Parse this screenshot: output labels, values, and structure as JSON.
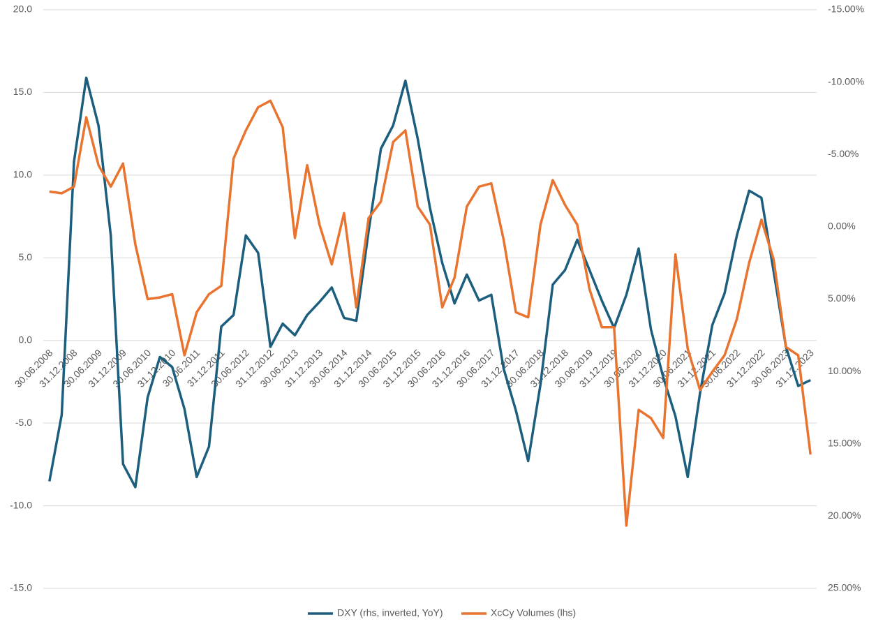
{
  "chart_data": {
    "type": "line",
    "categories": [
      "30.06.2008",
      null,
      "31.12.2008",
      null,
      "30.06.2009",
      null,
      "31.12.2009",
      null,
      "30.06.2010",
      null,
      "31.12.2010",
      null,
      "30.06.2011",
      null,
      "31.12.2011",
      null,
      "30.06.2012",
      null,
      "31.12.2012",
      null,
      "30.06.2013",
      null,
      "31.12.2013",
      null,
      "30.06.2014",
      null,
      "31.12.2014",
      null,
      "30.06.2015",
      null,
      "31.12.2015",
      null,
      "30.06.2016",
      null,
      "31.12.2016",
      null,
      "30.06.2017",
      null,
      "31.12.2017",
      null,
      "30.06.2018",
      null,
      "31.12.2018",
      null,
      "30.06.2019",
      null,
      "31.12.2019",
      null,
      "30.06.2020",
      null,
      "31.12.2020",
      null,
      "30.06.2021",
      null,
      "31.12.2021",
      null,
      "30.06.2022",
      null,
      "31.12.2022",
      null,
      "30.06.2023",
      null,
      "31.12.2023"
    ],
    "series": [
      {
        "name": "DXY (rhs, inverted, YoY)",
        "color": "#1b5e7e",
        "axis": "y2",
        "values": [
          17.6,
          13.0,
          -4.5,
          -10.3,
          -7.0,
          0.6,
          16.4,
          18.0,
          11.8,
          9.0,
          9.7,
          12.6,
          17.3,
          15.2,
          6.9,
          6.1,
          0.6,
          1.8,
          8.3,
          6.7,
          7.5,
          6.1,
          5.2,
          4.2,
          6.3,
          6.5,
          0.3,
          -5.4,
          -7.0,
          -10.1,
          -6.1,
          -1.3,
          2.5,
          5.3,
          3.3,
          5.1,
          4.7,
          9.8,
          12.7,
          16.2,
          10.9,
          4.0,
          3.0,
          0.9,
          3.0,
          5.1,
          7.0,
          4.7,
          1.5,
          7.1,
          10.4,
          13.1,
          17.3,
          11.5,
          6.8,
          4.6,
          0.6,
          -2.5,
          -2.0,
          3.1,
          8.3,
          11.0,
          10.6
        ]
      },
      {
        "name": "XcCy Volumes (lhs)",
        "color": "#e8742f",
        "values": [
          9.0,
          8.9,
          9.3,
          13.5,
          10.6,
          9.3,
          10.7,
          5.8,
          2.5,
          2.6,
          2.8,
          -0.9,
          1.7,
          2.8,
          3.3,
          11.0,
          12.7,
          14.1,
          14.5,
          12.9,
          6.2,
          10.6,
          7.0,
          4.6,
          7.7,
          2.0,
          7.4,
          8.4,
          12.0,
          12.7,
          8.1,
          7.0,
          2.0,
          3.8,
          8.1,
          9.3,
          9.5,
          6.1,
          1.7,
          1.4,
          7.0,
          9.7,
          8.2,
          7.0,
          3.1,
          0.8,
          0.8,
          -11.2,
          -4.2,
          -4.7,
          -5.9,
          5.2,
          -0.5,
          -3.0,
          -1.9,
          -0.9,
          1.3,
          4.7,
          7.3,
          4.9,
          -0.4,
          -0.9,
          -6.9
        ]
      }
    ],
    "ylim": [
      -15,
      20
    ],
    "yticks": [
      {
        "value": -15,
        "label": "-15.0"
      },
      {
        "value": -10,
        "label": "-10.0"
      },
      {
        "value": -5,
        "label": "-5.0"
      },
      {
        "value": 0,
        "label": "0.0"
      },
      {
        "value": 5,
        "label": "5.0"
      },
      {
        "value": 10,
        "label": "10.0"
      },
      {
        "value": 15,
        "label": "15.0"
      },
      {
        "value": 20,
        "label": "20.0"
      }
    ],
    "y2lim": [
      25,
      -15
    ],
    "y2ticks": [
      {
        "value": 25,
        "label": "25.00%"
      },
      {
        "value": 20,
        "label": "20.00%"
      },
      {
        "value": 15,
        "label": "15.00%"
      },
      {
        "value": 10,
        "label": "10.00%"
      },
      {
        "value": 5,
        "label": "5.00%"
      },
      {
        "value": 0,
        "label": "0.00%"
      },
      {
        "value": -5,
        "label": "-5.00%"
      },
      {
        "value": -10,
        "label": "-10.00%"
      },
      {
        "value": -15,
        "label": "-15.00%"
      }
    ],
    "grid": true,
    "legend": "bottom"
  }
}
